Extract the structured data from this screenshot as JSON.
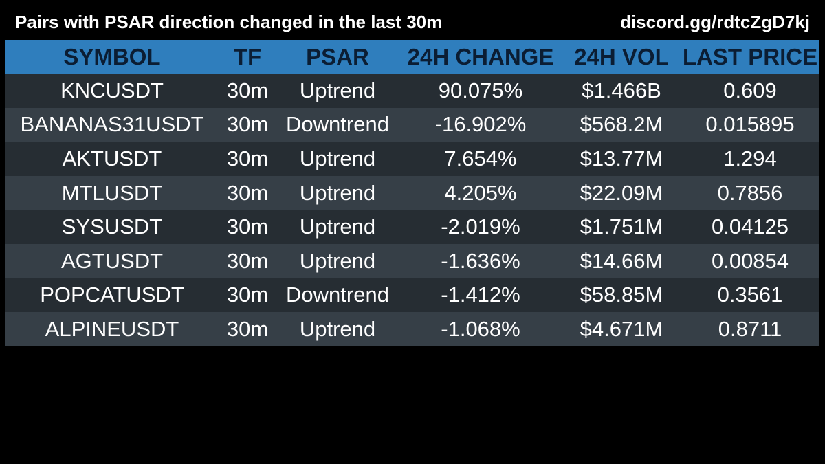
{
  "header": {
    "title": "Pairs with PSAR direction changed in the last 30m",
    "link": "discord.gg/rdtcZgD7kj"
  },
  "table": {
    "columns": [
      "SYMBOL",
      "TF",
      "PSAR",
      "24H CHANGE",
      "24H VOL",
      "LAST PRICE"
    ],
    "rows": [
      [
        "KNCUSDT",
        "30m",
        "Uptrend",
        "90.075%",
        "$1.466B",
        "0.609"
      ],
      [
        "BANANAS31USDT",
        "30m",
        "Downtrend",
        "-16.902%",
        "$568.2M",
        "0.015895"
      ],
      [
        "AKTUSDT",
        "30m",
        "Uptrend",
        "7.654%",
        "$13.77M",
        "1.294"
      ],
      [
        "MTLUSDT",
        "30m",
        "Uptrend",
        "4.205%",
        "$22.09M",
        "0.7856"
      ],
      [
        "SYSUSDT",
        "30m",
        "Uptrend",
        "-2.019%",
        "$1.751M",
        "0.04125"
      ],
      [
        "AGTUSDT",
        "30m",
        "Uptrend",
        "-1.636%",
        "$14.66M",
        "0.00854"
      ],
      [
        "POPCATUSDT",
        "30m",
        "Downtrend",
        "-1.412%",
        "$58.85M",
        "0.3561"
      ],
      [
        "ALPINEUSDT",
        "30m",
        "Uptrend",
        "-1.068%",
        "$4.671M",
        "0.8711"
      ]
    ]
  },
  "colors": {
    "background": "#000000",
    "header_row": "#2f7ebd",
    "header_text": "#0b1d33",
    "row_odd": "#262d33",
    "row_even": "#363f47",
    "text": "#ffffff"
  }
}
